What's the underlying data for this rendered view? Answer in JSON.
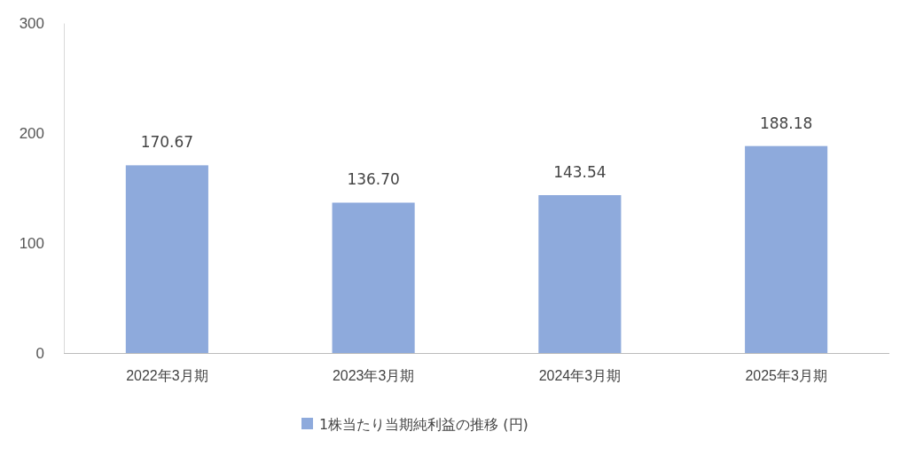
{
  "chart_data": {
    "type": "bar",
    "categories": [
      "2022年3月期",
      "2023年3月期",
      "2024年3月期",
      "2025年3月期"
    ],
    "series": [
      {
        "name": "1株当たり当期純利益の推移 (円)",
        "color": "#8eaadc",
        "values": [
          170.67,
          136.7,
          143.54,
          188.18
        ]
      }
    ],
    "value_labels": [
      "170.67",
      "136.70",
      "143.54",
      "188.18"
    ],
    "ylim": [
      0,
      300
    ],
    "yticks": [
      0,
      100,
      200,
      300
    ],
    "grid": false,
    "legend": "bottom"
  }
}
